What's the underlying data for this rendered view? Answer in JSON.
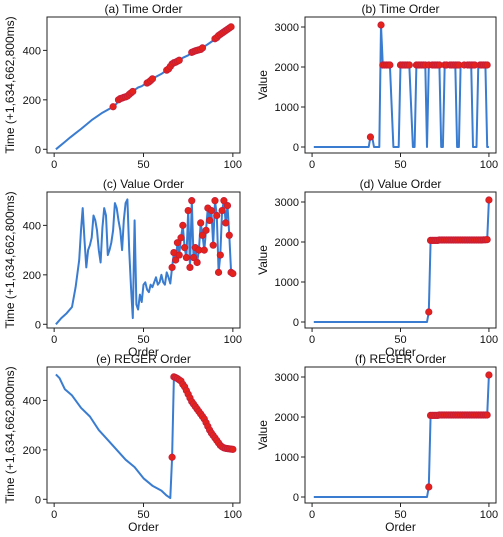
{
  "colors": {
    "line": "#3a7cd0",
    "marker": "#e5231b",
    "marker_edge": "#c41e3a",
    "axis": "#222222"
  },
  "chart_data": [
    {
      "id": "a",
      "type": "line",
      "title": "(a) Time Order",
      "xlabel": "",
      "ylabel": "Time (+1,634,662,800ms)",
      "xlim": [
        -4,
        104
      ],
      "ylim": [
        -15,
        535
      ],
      "xticks": [
        0,
        50,
        100
      ],
      "yticks": [
        0,
        200,
        400
      ],
      "series": [
        {
          "x": [
            1,
            3,
            6,
            9,
            12,
            15,
            18,
            21,
            24,
            27,
            30,
            33,
            35,
            36,
            37,
            38,
            39,
            40,
            41,
            42,
            43,
            44,
            45,
            47,
            49,
            51,
            52,
            53,
            54,
            55,
            57,
            60,
            62,
            63,
            64,
            65,
            66,
            67,
            68,
            69,
            70,
            72,
            75,
            77,
            78,
            79,
            80,
            81,
            82,
            83,
            85,
            87,
            89,
            90,
            91,
            92,
            93,
            94,
            95,
            96,
            97,
            98,
            99,
            100
          ],
          "y": [
            0,
            12,
            30,
            48,
            65,
            82,
            100,
            118,
            133,
            148,
            160,
            172,
            185,
            200,
            205,
            207,
            210,
            212,
            215,
            222,
            228,
            234,
            240,
            250,
            255,
            265,
            268,
            272,
            278,
            285,
            293,
            305,
            315,
            320,
            325,
            335,
            345,
            350,
            352,
            356,
            360,
            370,
            380,
            392,
            395,
            398,
            400,
            402,
            404,
            410,
            420,
            430,
            440,
            447,
            452,
            460,
            465,
            470,
            475,
            480,
            485,
            490,
            495,
            505
          ]
        }
      ],
      "markers": {
        "x": [
          33,
          36,
          37,
          38,
          39,
          40,
          41,
          42,
          43,
          44,
          52,
          53,
          54,
          55,
          63,
          64,
          65,
          66,
          67,
          68,
          69,
          70,
          77,
          78,
          79,
          80,
          81,
          82,
          83,
          90,
          91,
          92,
          93,
          94,
          95,
          96,
          97,
          98,
          99
        ],
        "y": [
          172,
          200,
          205,
          207,
          210,
          212,
          215,
          222,
          228,
          234,
          268,
          272,
          278,
          285,
          320,
          325,
          335,
          345,
          350,
          352,
          356,
          360,
          392,
          395,
          398,
          400,
          402,
          404,
          410,
          447,
          452,
          460,
          465,
          470,
          475,
          480,
          485,
          490,
          495
        ]
      }
    },
    {
      "id": "b",
      "type": "line",
      "title": "(b) Time Order",
      "xlabel": "",
      "ylabel": "Value",
      "xlim": [
        -4,
        104
      ],
      "ylim": [
        -150,
        3250
      ],
      "xticks": [
        0,
        50,
        100
      ],
      "yticks": [
        0,
        1000,
        2000,
        3000
      ],
      "series": [
        {
          "x": [
            1,
            32,
            33,
            34,
            35,
            38,
            39,
            40,
            41,
            42,
            43,
            44,
            46,
            48,
            49,
            50,
            51,
            52,
            53,
            54,
            55,
            57,
            58,
            59,
            60,
            61,
            62,
            63,
            64,
            65,
            66,
            68,
            69,
            70,
            71,
            72,
            73,
            74,
            75,
            76,
            78,
            79,
            80,
            81,
            82,
            83,
            84,
            85,
            86,
            88,
            89,
            90,
            91,
            92,
            93,
            94,
            95,
            96,
            97,
            98,
            99,
            100
          ],
          "y": [
            0,
            0,
            250,
            250,
            0,
            0,
            3050,
            2050,
            2050,
            2050,
            2050,
            2050,
            0,
            0,
            0,
            2050,
            2050,
            2050,
            2050,
            2050,
            2050,
            0,
            0,
            2050,
            2050,
            2050,
            2050,
            2050,
            2050,
            0,
            2050,
            2050,
            2050,
            2050,
            2050,
            2050,
            0,
            0,
            2050,
            2050,
            2050,
            2050,
            2050,
            2050,
            0,
            0,
            2050,
            2050,
            2050,
            2050,
            2050,
            2050,
            0,
            0,
            0,
            2050,
            2050,
            2050,
            2050,
            2050,
            0,
            0
          ]
        }
      ],
      "markers": {
        "x": [
          33,
          39,
          40,
          41,
          42,
          43,
          44,
          50,
          51,
          52,
          53,
          54,
          55,
          59,
          60,
          61,
          62,
          63,
          64,
          66,
          68,
          69,
          70,
          71,
          72,
          75,
          76,
          78,
          79,
          80,
          81,
          82,
          83,
          86,
          88,
          89,
          90,
          91,
          92,
          95,
          96,
          97,
          98,
          99
        ],
        "y": [
          250,
          3050,
          2050,
          2050,
          2050,
          2050,
          2050,
          2050,
          2050,
          2050,
          2050,
          2050,
          2050,
          2050,
          2050,
          2050,
          2050,
          2050,
          2050,
          2050,
          2050,
          2050,
          2050,
          2050,
          2050,
          2050,
          2050,
          2050,
          2050,
          2050,
          2050,
          2050,
          2050,
          2050,
          2050,
          2050,
          2050,
          2050,
          2050,
          2050,
          2050,
          2050,
          2050,
          2050
        ]
      }
    },
    {
      "id": "c",
      "type": "line",
      "title": "(c) Value Order",
      "xlabel": "Order",
      "ylabel": "Time (+1,634,662,800ms)",
      "xlim": [
        -4,
        104
      ],
      "ylim": [
        -15,
        535
      ],
      "xticks": [
        0,
        50,
        100
      ],
      "yticks": [
        0,
        200,
        400
      ],
      "series": [
        {
          "x": [
            1,
            4,
            7,
            10,
            12,
            14,
            15,
            16,
            17,
            18,
            19,
            20,
            21,
            22,
            23,
            24,
            25,
            26,
            27,
            28,
            29,
            30,
            31,
            32,
            33,
            34,
            35,
            36,
            37,
            38,
            39,
            40,
            41,
            42,
            43,
            44,
            45,
            46,
            47,
            48,
            49,
            50,
            51,
            52,
            53,
            54,
            55,
            56,
            57,
            58,
            59,
            60,
            61,
            62,
            63,
            64,
            65,
            66,
            67,
            68,
            69,
            70,
            71,
            72,
            73,
            74,
            75,
            76,
            77,
            78,
            79,
            80,
            81,
            82,
            83,
            84,
            85,
            86,
            87,
            88,
            89,
            90,
            91,
            92,
            93,
            94,
            95,
            96,
            97,
            98,
            99,
            100
          ],
          "y": [
            0,
            25,
            45,
            70,
            150,
            260,
            380,
            470,
            340,
            230,
            300,
            320,
            350,
            440,
            420,
            380,
            300,
            250,
            390,
            470,
            440,
            280,
            300,
            330,
            380,
            490,
            470,
            420,
            380,
            300,
            420,
            490,
            505,
            300,
            150,
            25,
            420,
            80,
            60,
            120,
            90,
            160,
            170,
            140,
            130,
            160,
            150,
            170,
            190,
            160,
            170,
            200,
            170,
            160,
            210,
            190,
            165,
            230,
            290,
            260,
            330,
            280,
            350,
            400,
            310,
            270,
            460,
            230,
            500,
            270,
            310,
            250,
            300,
            410,
            360,
            300,
            380,
            470,
            420,
            460,
            320,
            500,
            440,
            210,
            280,
            460,
            500,
            410,
            480,
            360,
            210,
            205
          ]
        }
      ],
      "markers": {
        "x": [
          66,
          67,
          68,
          69,
          70,
          71,
          72,
          73,
          74,
          75,
          76,
          77,
          78,
          79,
          80,
          81,
          82,
          83,
          84,
          85,
          86,
          87,
          88,
          89,
          90,
          91,
          92,
          93,
          94,
          95,
          96,
          97,
          98,
          99,
          100
        ],
        "y": [
          230,
          290,
          260,
          330,
          280,
          350,
          400,
          310,
          270,
          460,
          230,
          500,
          270,
          310,
          250,
          300,
          410,
          360,
          300,
          380,
          470,
          420,
          460,
          320,
          500,
          440,
          210,
          280,
          460,
          500,
          410,
          480,
          360,
          210,
          205
        ]
      }
    },
    {
      "id": "d",
      "type": "line",
      "title": "(d) Value Order",
      "xlabel": "Order",
      "ylabel": "Value",
      "xlim": [
        -4,
        104
      ],
      "ylim": [
        -150,
        3250
      ],
      "xticks": [
        0,
        50,
        100
      ],
      "yticks": [
        0,
        1000,
        2000,
        3000
      ],
      "series": [
        {
          "x": [
            1,
            65,
            66,
            67,
            68,
            99,
            100
          ],
          "y": [
            0,
            0,
            250,
            2040,
            2050,
            2060,
            3050
          ]
        }
      ],
      "markers": {
        "x": [
          66,
          67,
          68,
          69,
          70,
          71,
          72,
          73,
          74,
          75,
          76,
          77,
          78,
          79,
          80,
          81,
          82,
          83,
          84,
          85,
          86,
          87,
          88,
          89,
          90,
          91,
          92,
          93,
          94,
          95,
          96,
          97,
          98,
          99,
          100
        ],
        "y": [
          250,
          2040,
          2040,
          2040,
          2040,
          2040,
          2050,
          2050,
          2050,
          2050,
          2050,
          2050,
          2050,
          2050,
          2050,
          2050,
          2050,
          2050,
          2050,
          2050,
          2050,
          2050,
          2050,
          2050,
          2050,
          2050,
          2050,
          2050,
          2050,
          2050,
          2050,
          2055,
          2055,
          2060,
          3050
        ]
      }
    },
    {
      "id": "e",
      "type": "line",
      "title": "(e) REGER Order",
      "xlabel": "Order",
      "ylabel": "Time (+1,634,662,800ms)",
      "xlim": [
        -4,
        104
      ],
      "ylim": [
        -15,
        535
      ],
      "xticks": [
        0,
        50,
        100
      ],
      "yticks": [
        0,
        200,
        400
      ],
      "series": [
        {
          "x": [
            1,
            3,
            6,
            10,
            15,
            20,
            25,
            30,
            35,
            40,
            45,
            50,
            55,
            60,
            63,
            65,
            66,
            67,
            68,
            69,
            70,
            71,
            72,
            73,
            74,
            75,
            76,
            77,
            78,
            79,
            80,
            81,
            82,
            83,
            84,
            85,
            86,
            87,
            88,
            89,
            90,
            91,
            92,
            93,
            94,
            95,
            96,
            97,
            98,
            99,
            100
          ],
          "y": [
            505,
            490,
            445,
            420,
            370,
            335,
            280,
            240,
            200,
            160,
            130,
            85,
            55,
            35,
            15,
            5,
            170,
            495,
            492,
            488,
            483,
            478,
            465,
            455,
            440,
            425,
            410,
            395,
            385,
            375,
            365,
            355,
            345,
            335,
            325,
            310,
            295,
            280,
            268,
            258,
            248,
            238,
            228,
            218,
            212,
            208,
            206,
            205,
            204,
            203,
            202
          ]
        }
      ],
      "markers": {
        "x": [
          66,
          67,
          68,
          69,
          70,
          71,
          72,
          73,
          74,
          75,
          76,
          77,
          78,
          79,
          80,
          81,
          82,
          83,
          84,
          85,
          86,
          87,
          88,
          89,
          90,
          91,
          92,
          93,
          94,
          95,
          96,
          97,
          98,
          99,
          100
        ],
        "y": [
          170,
          495,
          492,
          488,
          483,
          478,
          465,
          455,
          440,
          425,
          410,
          395,
          385,
          375,
          365,
          355,
          345,
          335,
          325,
          310,
          295,
          280,
          268,
          258,
          248,
          238,
          228,
          218,
          212,
          208,
          206,
          205,
          204,
          203,
          202
        ]
      }
    },
    {
      "id": "f",
      "type": "line",
      "title": "(f) REGER Order",
      "xlabel": "Order",
      "ylabel": "Value",
      "xlim": [
        -4,
        104
      ],
      "ylim": [
        -150,
        3250
      ],
      "xticks": [
        0,
        50,
        100
      ],
      "yticks": [
        0,
        1000,
        2000,
        3000
      ],
      "series": [
        {
          "x": [
            1,
            65,
            66,
            67,
            68,
            99,
            100
          ],
          "y": [
            0,
            0,
            250,
            2040,
            2050,
            2050,
            3050
          ]
        }
      ],
      "markers": {
        "x": [
          66,
          67,
          68,
          69,
          70,
          71,
          72,
          73,
          74,
          75,
          76,
          77,
          78,
          79,
          80,
          81,
          82,
          83,
          84,
          85,
          86,
          87,
          88,
          89,
          90,
          91,
          92,
          93,
          94,
          95,
          96,
          97,
          98,
          99,
          100
        ],
        "y": [
          250,
          2040,
          2040,
          2040,
          2040,
          2040,
          2050,
          2050,
          2050,
          2050,
          2050,
          2050,
          2050,
          2050,
          2050,
          2050,
          2050,
          2050,
          2050,
          2050,
          2050,
          2050,
          2050,
          2050,
          2050,
          2050,
          2050,
          2050,
          2050,
          2050,
          2050,
          2050,
          2050,
          2050,
          3050
        ]
      }
    }
  ]
}
